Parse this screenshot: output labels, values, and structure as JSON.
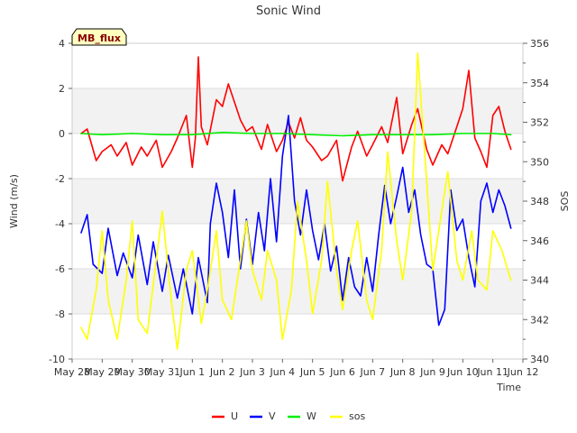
{
  "chart_data": {
    "type": "line",
    "title": "Sonic Wind",
    "badge": "MB_flux",
    "xlabel": "Time",
    "ylabel_left": "Wind (m/s)",
    "ylabel_right": "SOS",
    "xlim": [
      0,
      15
    ],
    "ylim_left": [
      -10,
      4
    ],
    "ylim_right": [
      340,
      356
    ],
    "x_ticks": [
      "May 28",
      "May 29",
      "May 30",
      "May 31",
      "Jun 1",
      "Jun 2",
      "Jun 3",
      "Jun 4",
      "Jun 5",
      "Jun 6",
      "Jun 7",
      "Jun 8",
      "Jun 9",
      "Jun 10",
      "Jun 11",
      "Jun 12"
    ],
    "y_ticks_left": [
      -10,
      -8,
      -6,
      -4,
      -2,
      0,
      2,
      4
    ],
    "y_ticks_right": [
      340,
      342,
      344,
      346,
      348,
      350,
      352,
      354,
      356
    ],
    "grid": true,
    "legend_position": "bottom",
    "series": [
      {
        "name": "U",
        "axis": "left",
        "color": "#ff0000",
        "x": [
          0.3,
          0.5,
          0.8,
          1.0,
          1.3,
          1.5,
          1.8,
          2.0,
          2.3,
          2.5,
          2.8,
          3.0,
          3.3,
          3.5,
          3.8,
          4.0,
          4.1,
          4.2,
          4.3,
          4.5,
          4.8,
          5.0,
          5.2,
          5.4,
          5.6,
          5.8,
          6.0,
          6.3,
          6.5,
          6.8,
          7.0,
          7.2,
          7.4,
          7.6,
          7.8,
          8.0,
          8.3,
          8.5,
          8.8,
          9.0,
          9.3,
          9.5,
          9.8,
          10.0,
          10.3,
          10.5,
          10.8,
          11.0,
          11.3,
          11.5,
          11.8,
          12.0,
          12.3,
          12.5,
          12.8,
          13.0,
          13.2,
          13.4,
          13.6,
          13.8,
          14.0,
          14.2,
          14.4,
          14.6
        ],
        "values": [
          0.0,
          0.2,
          -1.2,
          -0.8,
          -0.5,
          -1.0,
          -0.4,
          -1.4,
          -0.6,
          -1.0,
          -0.3,
          -1.5,
          -0.8,
          -0.2,
          0.8,
          -1.5,
          -0.2,
          3.4,
          0.3,
          -0.5,
          1.5,
          1.2,
          2.2,
          1.4,
          0.6,
          0.1,
          0.3,
          -0.7,
          0.4,
          -0.8,
          -0.3,
          0.5,
          -0.2,
          0.7,
          -0.3,
          -0.6,
          -1.2,
          -1.0,
          -0.3,
          -2.1,
          -0.6,
          0.1,
          -1.0,
          -0.5,
          0.3,
          -0.4,
          1.6,
          -0.9,
          0.4,
          1.1,
          -0.7,
          -1.4,
          -0.5,
          -0.9,
          0.3,
          1.1,
          2.8,
          -0.2,
          -0.8,
          -1.5,
          0.8,
          1.2,
          0.1,
          -0.7
        ]
      },
      {
        "name": "V",
        "axis": "left",
        "color": "#0000ff",
        "x": [
          0.3,
          0.5,
          0.7,
          1.0,
          1.2,
          1.5,
          1.7,
          2.0,
          2.2,
          2.5,
          2.7,
          3.0,
          3.2,
          3.5,
          3.7,
          4.0,
          4.2,
          4.5,
          4.6,
          4.8,
          5.0,
          5.2,
          5.4,
          5.6,
          5.8,
          6.0,
          6.2,
          6.4,
          6.6,
          6.8,
          7.0,
          7.2,
          7.4,
          7.6,
          7.8,
          8.0,
          8.2,
          8.4,
          8.6,
          8.8,
          9.0,
          9.2,
          9.4,
          9.6,
          9.8,
          10.0,
          10.2,
          10.4,
          10.6,
          10.8,
          11.0,
          11.2,
          11.4,
          11.6,
          11.8,
          12.0,
          12.2,
          12.4,
          12.6,
          12.8,
          13.0,
          13.2,
          13.4,
          13.6,
          13.8,
          14.0,
          14.2,
          14.4,
          14.6
        ],
        "values": [
          -4.4,
          -3.6,
          -5.8,
          -6.2,
          -4.2,
          -6.3,
          -5.3,
          -6.4,
          -4.5,
          -6.7,
          -4.8,
          -7.0,
          -5.4,
          -7.3,
          -6.0,
          -8.0,
          -5.5,
          -7.5,
          -4.0,
          -2.2,
          -3.5,
          -5.5,
          -2.5,
          -6.0,
          -3.8,
          -5.8,
          -3.5,
          -5.2,
          -2.0,
          -4.8,
          -1.0,
          0.8,
          -3.0,
          -4.5,
          -2.5,
          -4.3,
          -5.6,
          -4.0,
          -6.1,
          -5.0,
          -7.4,
          -5.5,
          -6.8,
          -7.2,
          -5.5,
          -7.0,
          -4.5,
          -2.3,
          -4.0,
          -2.8,
          -1.5,
          -3.5,
          -2.5,
          -4.5,
          -5.8,
          -6.0,
          -8.5,
          -7.8,
          -2.5,
          -4.3,
          -3.8,
          -5.5,
          -6.8,
          -3.0,
          -2.2,
          -3.5,
          -2.5,
          -3.2,
          -4.2
        ]
      },
      {
        "name": "W",
        "axis": "left",
        "color": "#00ee00",
        "x": [
          0.3,
          1.0,
          2.0,
          3.0,
          4.0,
          5.0,
          6.0,
          7.0,
          8.0,
          9.0,
          10.0,
          11.0,
          12.0,
          13.0,
          14.0,
          14.6
        ],
        "values": [
          0.0,
          -0.05,
          0.0,
          -0.05,
          -0.05,
          0.05,
          0.0,
          0.0,
          -0.05,
          -0.1,
          -0.05,
          -0.05,
          -0.05,
          0.0,
          0.0,
          -0.05
        ]
      },
      {
        "name": "sos",
        "axis": "right",
        "color": "#ffff00",
        "x": [
          0.3,
          0.5,
          0.8,
          1.0,
          1.2,
          1.5,
          1.8,
          2.0,
          2.2,
          2.5,
          2.8,
          3.0,
          3.3,
          3.5,
          3.8,
          4.0,
          4.3,
          4.5,
          4.8,
          5.0,
          5.3,
          5.5,
          5.8,
          6.0,
          6.3,
          6.5,
          6.8,
          7.0,
          7.3,
          7.5,
          7.8,
          8.0,
          8.3,
          8.5,
          8.8,
          9.0,
          9.3,
          9.5,
          9.8,
          10.0,
          10.3,
          10.5,
          10.8,
          11.0,
          11.3,
          11.5,
          11.8,
          12.0,
          12.3,
          12.5,
          12.8,
          13.0,
          13.3,
          13.5,
          13.8,
          14.0,
          14.3,
          14.6
        ],
        "values": [
          341.6,
          341.0,
          343.5,
          346.5,
          343.0,
          341.0,
          344.0,
          347.0,
          342.0,
          341.3,
          345.0,
          347.5,
          343.0,
          340.5,
          344.5,
          345.5,
          341.8,
          343.5,
          346.5,
          343.0,
          342.0,
          344.0,
          347.0,
          344.5,
          343.0,
          345.5,
          344.0,
          341.0,
          343.5,
          348.0,
          345.0,
          342.3,
          345.0,
          349.0,
          344.5,
          342.5,
          345.5,
          347.0,
          343.0,
          342.0,
          345.5,
          350.5,
          346.0,
          344.0,
          347.5,
          355.5,
          349.0,
          344.5,
          347.5,
          349.5,
          345.0,
          344.0,
          346.5,
          344.0,
          343.5,
          346.5,
          345.5,
          344.0
        ]
      }
    ]
  }
}
